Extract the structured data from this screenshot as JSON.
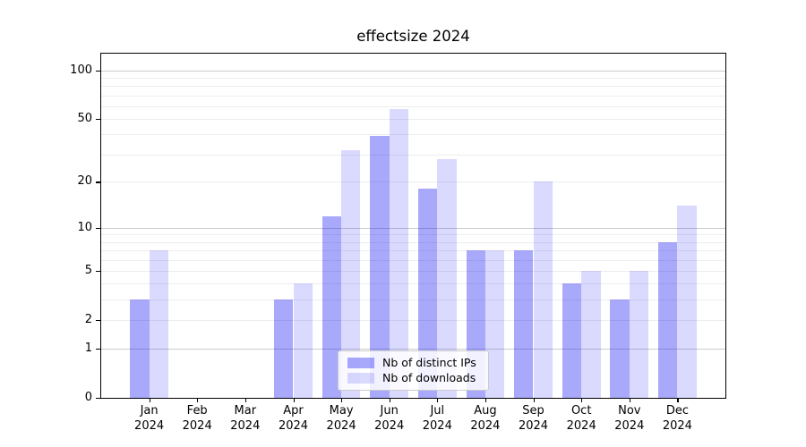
{
  "chart_data": {
    "type": "bar",
    "title": "effectsize 2024",
    "categories": [
      "Jan\n2024",
      "Feb\n2024",
      "Mar\n2024",
      "Apr\n2024",
      "May\n2024",
      "Jun\n2024",
      "Jul\n2024",
      "Aug\n2024",
      "Sep\n2024",
      "Oct\n2024",
      "Nov\n2024",
      "Dec\n2024"
    ],
    "series": [
      {
        "name": "Nb of distinct IPs",
        "color": "#0a0af559",
        "values": [
          3,
          0,
          0,
          3,
          12,
          39,
          18,
          7,
          7,
          4,
          3,
          8
        ]
      },
      {
        "name": "Nb of downloads",
        "color": "#0a0af526",
        "values": [
          7,
          0,
          0,
          4,
          32,
          58,
          28,
          7,
          20,
          5,
          5,
          14
        ]
      }
    ],
    "yscale": "log1p",
    "ylim": [
      0,
      127
    ],
    "yticks": [
      0,
      1,
      2,
      5,
      10,
      20,
      50,
      100
    ],
    "major_gridlines": [
      1,
      10,
      100
    ],
    "minor_gridlines": [
      2,
      3,
      4,
      5,
      6,
      7,
      8,
      9,
      20,
      30,
      40,
      50,
      60,
      70,
      80,
      90
    ],
    "grid": true,
    "legend_position": "lower center",
    "xlabel": "",
    "ylabel": ""
  },
  "colors": {
    "bar_ips": "#0a0af559",
    "bar_downloads": "#0a0af526",
    "grid_major": "#cccccc",
    "grid_minor": "#ededed",
    "spine": "#000000"
  }
}
